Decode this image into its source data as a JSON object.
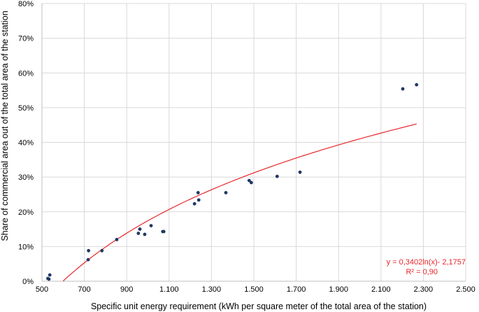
{
  "chart_data": {
    "type": "scatter",
    "title": "",
    "xlabel": "Specific unit energy requirement (kWh per square meter of the total area of the station)",
    "ylabel": "Share of commercial area out of the total area of the station",
    "xlim": [
      500,
      2500
    ],
    "ylim": [
      0,
      0.8
    ],
    "x_ticks": [
      500,
      700,
      900,
      1100,
      1300,
      1500,
      1700,
      1900,
      2100,
      2300,
      2500
    ],
    "x_tick_labels": [
      "500",
      "700",
      "900",
      "1.100",
      "1.300",
      "1.500",
      "1.700",
      "1.900",
      "2.100",
      "2.300",
      "2.500"
    ],
    "y_ticks": [
      0,
      0.1,
      0.2,
      0.3,
      0.4,
      0.5,
      0.6,
      0.7,
      0.8
    ],
    "y_tick_labels": [
      "0%",
      "10%",
      "20%",
      "30%",
      "40%",
      "50%",
      "60%",
      "70%",
      "80%"
    ],
    "grid": true,
    "point_color": "#1f3864",
    "trend_color": "#e8252a",
    "points": [
      {
        "x": 528,
        "y": 0.008
      },
      {
        "x": 533,
        "y": 0.006
      },
      {
        "x": 537,
        "y": 0.018
      },
      {
        "x": 718,
        "y": 0.062
      },
      {
        "x": 720,
        "y": 0.088
      },
      {
        "x": 783,
        "y": 0.088
      },
      {
        "x": 853,
        "y": 0.12
      },
      {
        "x": 955,
        "y": 0.138
      },
      {
        "x": 962,
        "y": 0.15
      },
      {
        "x": 985,
        "y": 0.135
      },
      {
        "x": 1015,
        "y": 0.16
      },
      {
        "x": 1070,
        "y": 0.143
      },
      {
        "x": 1075,
        "y": 0.143
      },
      {
        "x": 1220,
        "y": 0.223
      },
      {
        "x": 1237,
        "y": 0.255
      },
      {
        "x": 1240,
        "y": 0.234
      },
      {
        "x": 1368,
        "y": 0.255
      },
      {
        "x": 1478,
        "y": 0.29
      },
      {
        "x": 1488,
        "y": 0.284
      },
      {
        "x": 1610,
        "y": 0.302
      },
      {
        "x": 1718,
        "y": 0.314
      },
      {
        "x": 2203,
        "y": 0.554
      },
      {
        "x": 2268,
        "y": 0.566
      }
    ],
    "trendline": {
      "type": "logarithmic",
      "a": 0.3402,
      "b": -2.1757,
      "x_from": 600,
      "x_to": 2268,
      "equation": "y = 0,3402ln(x)- 2,1757",
      "r2": "R² = 0,90"
    }
  }
}
